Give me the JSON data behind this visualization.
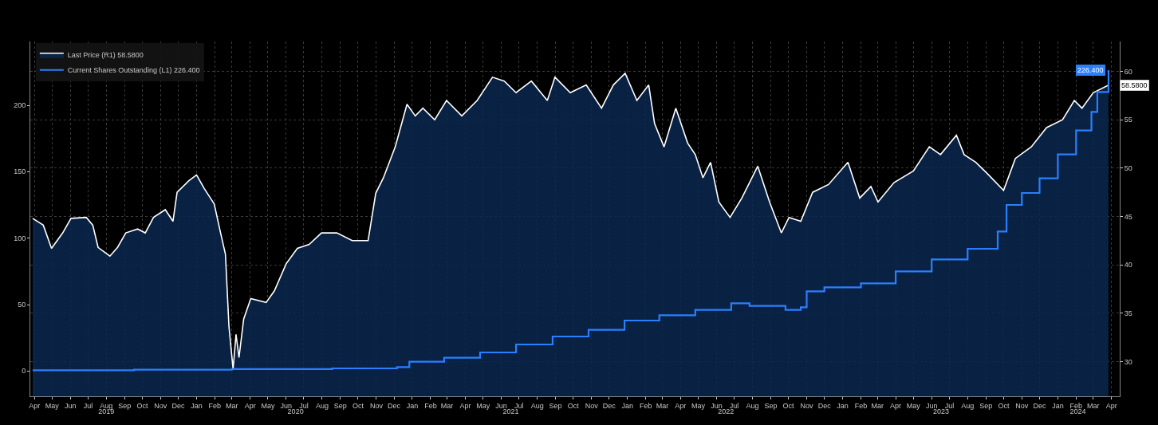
{
  "chart_data": {
    "type": "area",
    "xlim": [
      "2019-04-08",
      "2024-04-29"
    ],
    "xticks": [
      {
        "value": "2019-04-15",
        "label": "Apr"
      },
      {
        "value": "2019-05-15",
        "label": "May"
      },
      {
        "value": "2019-06-15",
        "label": "Jun"
      },
      {
        "value": "2019-07-15",
        "label": "Jul"
      },
      {
        "value": "2019-08-15",
        "label": "Aug"
      },
      {
        "value": "2019-09-15",
        "label": "Sep"
      },
      {
        "value": "2019-10-15",
        "label": "Oct"
      },
      {
        "value": "2019-11-15",
        "label": "Nov"
      },
      {
        "value": "2019-12-15",
        "label": "Dec"
      },
      {
        "value": "2020-01-15",
        "label": "Jan"
      },
      {
        "value": "2020-02-15",
        "label": "Feb"
      },
      {
        "value": "2020-03-15",
        "label": "Mar"
      },
      {
        "value": "2020-04-15",
        "label": "Apr"
      },
      {
        "value": "2020-05-15",
        "label": "May"
      },
      {
        "value": "2020-06-15",
        "label": "Jun"
      },
      {
        "value": "2020-07-15",
        "label": "Jul"
      },
      {
        "value": "2020-08-15",
        "label": "Aug"
      },
      {
        "value": "2020-09-15",
        "label": "Sep"
      },
      {
        "value": "2020-10-15",
        "label": "Oct"
      },
      {
        "value": "2020-11-15",
        "label": "Nov"
      },
      {
        "value": "2020-12-15",
        "label": "Dec"
      },
      {
        "value": "2021-01-15",
        "label": "Jan"
      },
      {
        "value": "2021-02-15",
        "label": "Feb"
      },
      {
        "value": "2021-03-15",
        "label": "Mar"
      },
      {
        "value": "2021-04-15",
        "label": "Apr"
      },
      {
        "value": "2021-05-15",
        "label": "May"
      },
      {
        "value": "2021-06-15",
        "label": "Jun"
      },
      {
        "value": "2021-07-15",
        "label": "Jul"
      },
      {
        "value": "2021-08-15",
        "label": "Aug"
      },
      {
        "value": "2021-09-15",
        "label": "Sep"
      },
      {
        "value": "2021-10-15",
        "label": "Oct"
      },
      {
        "value": "2021-11-15",
        "label": "Nov"
      },
      {
        "value": "2021-12-15",
        "label": "Dec"
      },
      {
        "value": "2022-01-15",
        "label": "Jan"
      },
      {
        "value": "2022-02-15",
        "label": "Feb"
      },
      {
        "value": "2022-03-15",
        "label": "Mar"
      },
      {
        "value": "2022-04-15",
        "label": "Apr"
      },
      {
        "value": "2022-05-15",
        "label": "May"
      },
      {
        "value": "2022-06-15",
        "label": "Jun"
      },
      {
        "value": "2022-07-15",
        "label": "Jul"
      },
      {
        "value": "2022-08-15",
        "label": "Aug"
      },
      {
        "value": "2022-09-15",
        "label": "Sep"
      },
      {
        "value": "2022-10-15",
        "label": "Oct"
      },
      {
        "value": "2022-11-15",
        "label": "Nov"
      },
      {
        "value": "2022-12-15",
        "label": "Dec"
      },
      {
        "value": "2023-01-15",
        "label": "Jan"
      },
      {
        "value": "2023-02-15",
        "label": "Feb"
      },
      {
        "value": "2023-03-15",
        "label": "Mar"
      },
      {
        "value": "2023-04-15",
        "label": "Apr"
      },
      {
        "value": "2023-05-15",
        "label": "May"
      },
      {
        "value": "2023-06-15",
        "label": "Jun"
      },
      {
        "value": "2023-07-15",
        "label": "Jul"
      },
      {
        "value": "2023-08-15",
        "label": "Aug"
      },
      {
        "value": "2023-09-15",
        "label": "Sep"
      },
      {
        "value": "2023-10-15",
        "label": "Oct"
      },
      {
        "value": "2023-11-15",
        "label": "Nov"
      },
      {
        "value": "2023-12-15",
        "label": "Dec"
      },
      {
        "value": "2024-01-15",
        "label": "Jan"
      },
      {
        "value": "2024-02-15",
        "label": "Feb"
      },
      {
        "value": "2024-03-15",
        "label": "Mar"
      },
      {
        "value": "2024-04-15",
        "label": "Apr"
      }
    ],
    "x2lim": [
      "2019-04-08",
      "2024-04-29"
    ],
    "x2ticks": [
      {
        "value": "2019-08-15",
        "label": "2019"
      },
      {
        "value": "2020-07-01",
        "label": "2020"
      },
      {
        "value": "2021-07-01",
        "label": "2021"
      },
      {
        "value": "2022-07-01",
        "label": "2022"
      },
      {
        "value": "2023-07-01",
        "label": "2023"
      },
      {
        "value": "2024-02-18",
        "label": "2024"
      }
    ],
    "ylim": [
      -19,
      248
    ],
    "yticks": [
      0,
      50,
      100,
      150,
      200
    ],
    "y2lim": [
      26.4,
      63.1
    ],
    "y2ticks": [
      30,
      35,
      40,
      45,
      50,
      55,
      60
    ],
    "grid": true,
    "legend": "top left",
    "series": [
      {
        "name": "Last Price (R1) 58.5800",
        "axis": "y2",
        "color": "#ffffff",
        "x": [
          "2019-04-12",
          "2019-04-30",
          "2019-05-14",
          "2019-06-02",
          "2019-06-16",
          "2019-07-12",
          "2019-07-23",
          "2019-08-01",
          "2019-08-21",
          "2019-09-03",
          "2019-09-17",
          "2019-10-07",
          "2019-10-20",
          "2019-11-03",
          "2019-11-23",
          "2019-12-06",
          "2019-12-13",
          "2020-01-02",
          "2020-01-15",
          "2020-01-28",
          "2020-02-14",
          "2020-02-24",
          "2020-03-04",
          "2020-03-10",
          "2020-03-17",
          "2020-03-22",
          "2020-03-27",
          "2020-04-04",
          "2020-04-16",
          "2020-05-12",
          "2020-05-26",
          "2020-06-15",
          "2020-07-04",
          "2020-07-24",
          "2020-08-14",
          "2020-09-09",
          "2020-10-05",
          "2020-11-01",
          "2020-11-14",
          "2020-11-27",
          "2020-12-17",
          "2021-01-06",
          "2021-01-20",
          "2021-02-02",
          "2021-02-22",
          "2021-03-14",
          "2021-04-09",
          "2021-05-05",
          "2021-05-31",
          "2021-06-20",
          "2021-07-10",
          "2021-08-05",
          "2021-09-01",
          "2021-09-14",
          "2021-10-10",
          "2021-11-06",
          "2021-12-02",
          "2021-12-22",
          "2022-01-11",
          "2022-01-31",
          "2022-02-20",
          "2022-03-02",
          "2022-03-18",
          "2022-04-07",
          "2022-04-27",
          "2022-05-10",
          "2022-05-23",
          "2022-06-05",
          "2022-06-19",
          "2022-07-08",
          "2022-07-28",
          "2022-08-24",
          "2022-09-13",
          "2022-10-03",
          "2022-10-16",
          "2022-11-05",
          "2022-11-25",
          "2022-12-22",
          "2023-01-24",
          "2023-02-13",
          "2023-03-04",
          "2023-03-16",
          "2023-04-12",
          "2023-05-15",
          "2023-06-11",
          "2023-06-30",
          "2023-07-27",
          "2023-08-09",
          "2023-08-29",
          "2023-09-18",
          "2023-10-15",
          "2023-11-04",
          "2023-12-01",
          "2023-12-27",
          "2024-01-23",
          "2024-02-12",
          "2024-02-25",
          "2024-03-15",
          "2024-04-10"
        ],
        "values": [
          44.8,
          44.1,
          41.7,
          43.3,
          44.8,
          44.9,
          44.1,
          41.8,
          40.9,
          41.8,
          43.3,
          43.7,
          43.3,
          44.9,
          45.7,
          44.5,
          47.5,
          48.7,
          49.3,
          47.9,
          46.3,
          43.5,
          41.1,
          33.6,
          29.2,
          32.8,
          30.4,
          34.4,
          36.5,
          36.1,
          37.3,
          40.1,
          41.7,
          42.1,
          43.3,
          43.3,
          42.5,
          42.5,
          47.4,
          49.0,
          52.2,
          56.6,
          55.4,
          56.2,
          55.0,
          57.0,
          55.4,
          57.0,
          59.4,
          59.0,
          57.8,
          59.0,
          57.0,
          59.4,
          57.8,
          58.6,
          56.2,
          58.6,
          59.8,
          57.0,
          58.6,
          54.6,
          52.2,
          56.2,
          52.6,
          51.4,
          49.0,
          50.6,
          46.5,
          44.9,
          46.9,
          50.2,
          46.5,
          43.3,
          44.9,
          44.5,
          47.5,
          48.3,
          50.6,
          46.9,
          48.1,
          46.5,
          48.5,
          49.7,
          52.2,
          51.4,
          53.4,
          51.4,
          50.6,
          49.4,
          47.7,
          51.0,
          52.2,
          54.2,
          55.0,
          57.0,
          56.2,
          57.8,
          58.58
        ],
        "value_labels": [
          null,
          null,
          null,
          null,
          null,
          null,
          null,
          null,
          null,
          null,
          null,
          null,
          null,
          null,
          null,
          null,
          null,
          null,
          null,
          null,
          null,
          null,
          null,
          null,
          null,
          null,
          null,
          null,
          null,
          null,
          null,
          null,
          null,
          null,
          null,
          null,
          null,
          null,
          null,
          null,
          null,
          null,
          null,
          null,
          null,
          null,
          null,
          null,
          null,
          null,
          null,
          null,
          null,
          null,
          null,
          null,
          null,
          null,
          null,
          null,
          null,
          null,
          null,
          null,
          null,
          null,
          null,
          null,
          null,
          null,
          null,
          null,
          null,
          null,
          null,
          null,
          null,
          null,
          null,
          null,
          null,
          null,
          null,
          null,
          null,
          null,
          null,
          null,
          null,
          null,
          null,
          null,
          null,
          null,
          null,
          null,
          null,
          null,
          "58.5800"
        ]
      },
      {
        "name": "Current Shares Outstanding (L1) 226.400",
        "type": "step",
        "axis": "y",
        "color": "#2a7fff",
        "x": [
          "2019-04-12",
          "2019-10-01",
          "2020-03-15",
          "2020-09-01",
          "2020-12-20",
          "2021-01-10",
          "2021-03-10",
          "2021-05-10",
          "2021-07-10",
          "2021-09-10",
          "2021-11-10",
          "2022-01-10",
          "2022-03-10",
          "2022-05-10",
          "2022-07-10",
          "2022-08-10",
          "2022-10-10",
          "2022-11-05",
          "2022-11-15",
          "2022-12-15",
          "2023-02-15",
          "2023-04-15",
          "2023-06-15",
          "2023-08-15",
          "2023-10-05",
          "2023-10-20",
          "2023-11-15",
          "2023-12-15",
          "2024-01-15",
          "2024-02-15",
          "2024-03-12",
          "2024-03-22",
          "2024-04-10"
        ],
        "values": [
          0.6,
          1,
          1.5,
          2,
          3,
          7,
          10,
          14,
          20,
          26,
          31,
          38,
          42,
          46,
          51,
          49,
          46,
          48,
          60,
          63,
          66,
          75,
          84,
          92,
          105,
          125,
          134,
          145,
          163,
          181,
          195,
          210,
          226.4
        ],
        "value_labels": [
          null,
          null,
          null,
          null,
          null,
          null,
          null,
          null,
          null,
          null,
          null,
          null,
          null,
          null,
          null,
          null,
          null,
          null,
          null,
          null,
          null,
          null,
          null,
          null,
          null,
          null,
          null,
          null,
          null,
          null,
          null,
          null,
          "226.400"
        ]
      }
    ]
  }
}
